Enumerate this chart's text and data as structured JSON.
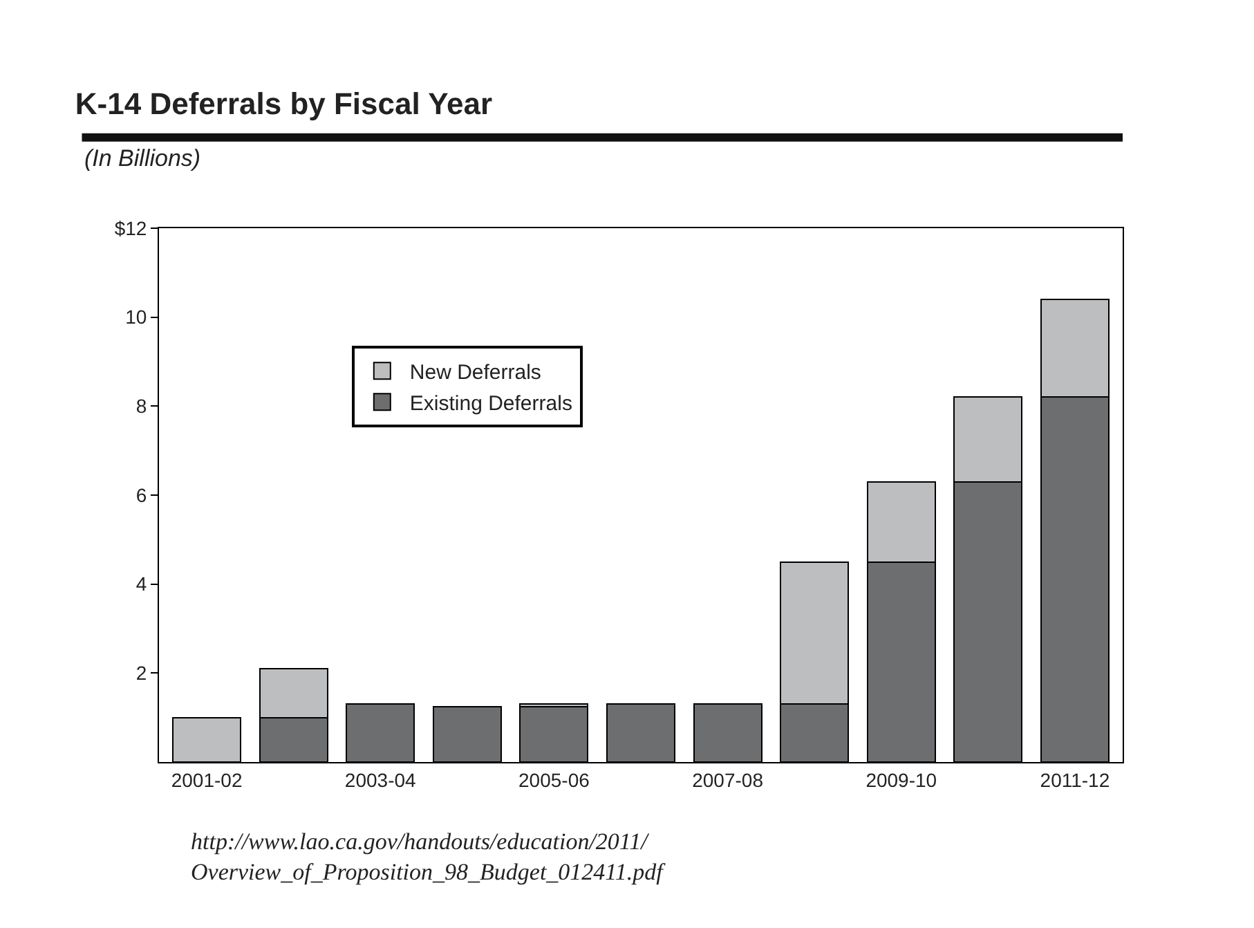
{
  "chart_data": {
    "type": "bar",
    "title": "K-14 Deferrals by Fiscal Year",
    "subtitle": "(In Billions)",
    "categories": [
      "2001-02",
      null,
      "2003-04",
      null,
      "2005-06",
      null,
      "2007-08",
      null,
      "2009-10",
      null,
      "2011-12"
    ],
    "stacked": true,
    "series": [
      {
        "name": "Existing Deferrals",
        "color": "#6d6e70",
        "values": [
          null,
          1.0,
          1.3,
          1.25,
          1.25,
          1.3,
          1.3,
          1.3,
          4.5,
          6.3,
          8.2
        ]
      },
      {
        "name": "New Deferrals",
        "color": "#bdbec0",
        "values": [
          1.0,
          1.1,
          null,
          null,
          0.05,
          null,
          null,
          3.2,
          1.8,
          1.9,
          2.2
        ]
      }
    ],
    "ylim": [
      0,
      12
    ],
    "yticks": [
      {
        "value": 2,
        "label": "2"
      },
      {
        "value": 4,
        "label": "4"
      },
      {
        "value": 6,
        "label": "6"
      },
      {
        "value": 8,
        "label": "8"
      },
      {
        "value": 10,
        "label": "10"
      },
      {
        "value": 12,
        "label": "$12"
      }
    ],
    "legend": "top left",
    "annotations": [
      "http://www.lao.ca.gov/handouts/education/2011/\nOverview_of_Proposition_98_Budget_012411.pdf"
    ]
  }
}
